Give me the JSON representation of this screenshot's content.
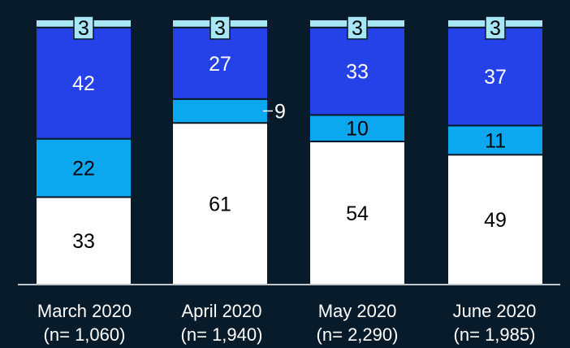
{
  "chart_data": {
    "type": "bar",
    "stacked": true,
    "categories": [
      "March 2020",
      "April 2020",
      "May 2020",
      "June 2020"
    ],
    "sample_sizes": [
      "(n= 1,060)",
      "(n= 1,940)",
      "(n= 2,290)",
      "(n= 1,985)"
    ],
    "series": [
      {
        "color": "#FFFFFF",
        "text_color": "#000000",
        "values": [
          33,
          61,
          54,
          49
        ]
      },
      {
        "color": "#0BA8EF",
        "text_color": "#000000",
        "values": [
          22,
          9,
          10,
          11
        ]
      },
      {
        "color": "#2541E8",
        "text_color": "#FFFFFF",
        "values": [
          42,
          27,
          33,
          37
        ]
      },
      {
        "color": "#A6E6F5",
        "text_color": "#000000",
        "values": [
          3,
          3,
          3,
          3
        ]
      }
    ],
    "ylim": [
      0,
      100
    ],
    "grid": false,
    "legend": "none",
    "background": "#071B2A"
  }
}
